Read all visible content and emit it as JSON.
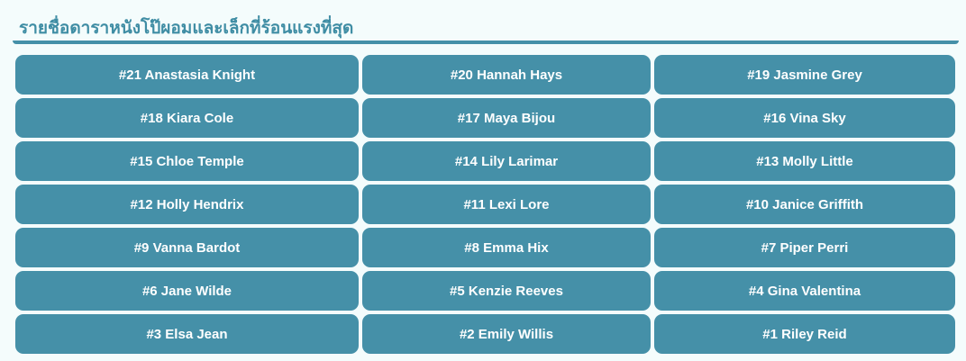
{
  "header": {
    "title": "รายชื่อดาราหนังโป๊ผอมและเล็กที่ร้อนแรงที่สุด"
  },
  "colors": {
    "accent": "#4590a8",
    "title": "#3f8da4",
    "background": "#f4fcfc"
  },
  "items": [
    "#21 Anastasia Knight",
    "#20 Hannah Hays",
    "#19 Jasmine Grey",
    "#18 Kiara Cole",
    "#17 Maya Bijou",
    "#16 Vina Sky",
    "#15 Chloe Temple",
    "#14 Lily Larimar",
    "#13 Molly Little",
    "#12 Holly Hendrix",
    "#11 Lexi Lore",
    "#10 Janice Griffith",
    "#9 Vanna Bardot",
    "#8 Emma Hix",
    "#7 Piper Perri",
    "#6 Jane Wilde",
    "#5 Kenzie Reeves",
    "#4 Gina Valentina",
    "#3 Elsa Jean",
    "#2 Emily Willis",
    "#1 Riley Reid"
  ]
}
